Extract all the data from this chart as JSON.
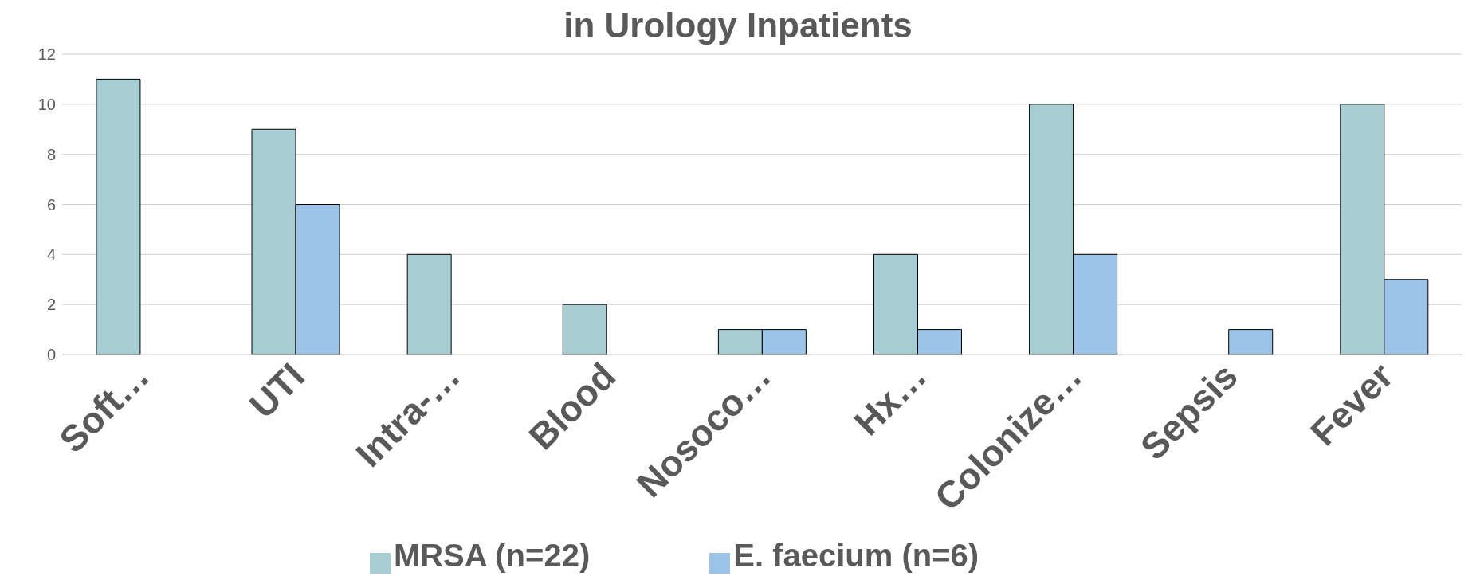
{
  "chart_data": {
    "type": "bar",
    "title": "in Urology Inpatients",
    "categories": [
      "Soft…",
      "UTI",
      "Intra-…",
      "Blood",
      "Nosoco…",
      "Hx…",
      "Colonize…",
      "Sepsis",
      "Fever"
    ],
    "series": [
      {
        "name": "MRSA (n=22)",
        "color": "#a6cdd2",
        "values": [
          11,
          9,
          4,
          2,
          1,
          4,
          10,
          null,
          10
        ]
      },
      {
        "name": "E. faecium (n=6)",
        "color": "#9dc3e6",
        "values": [
          null,
          6,
          null,
          null,
          1,
          1,
          4,
          1,
          3
        ]
      }
    ],
    "ylim": [
      0,
      12
    ],
    "yticks": [
      0,
      2,
      4,
      6,
      8,
      10,
      12
    ],
    "grid": "y",
    "legend": "bottom"
  }
}
